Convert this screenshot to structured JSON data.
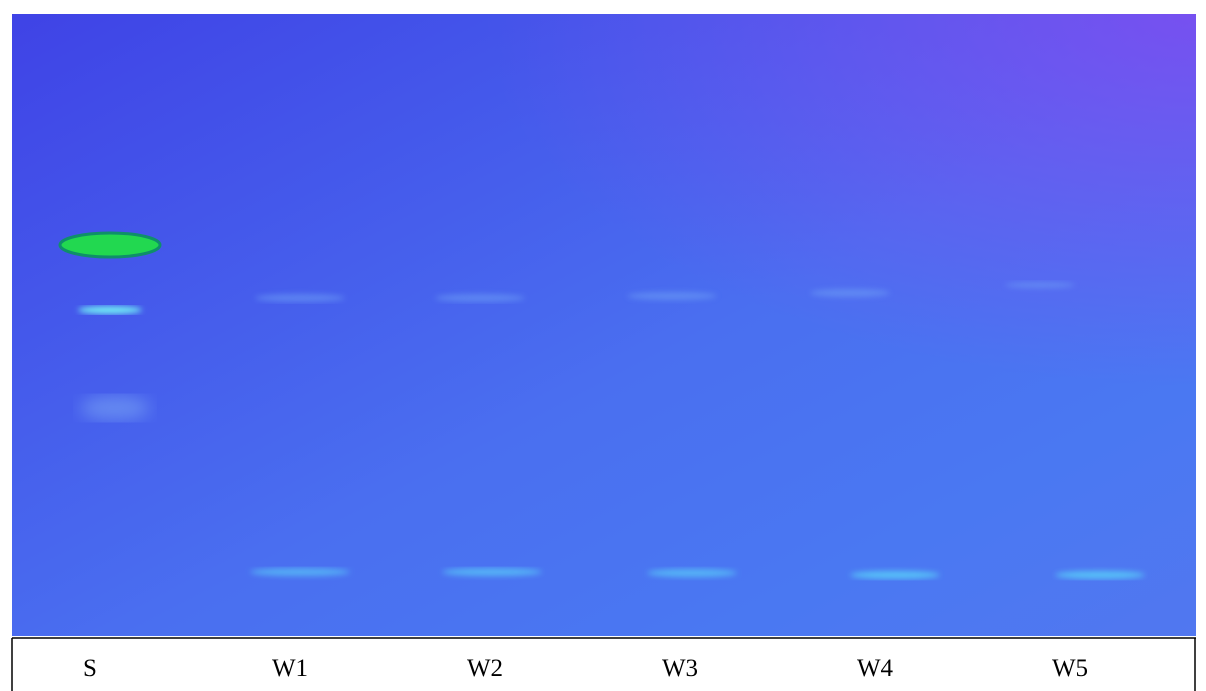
{
  "lanes": [
    "S",
    "W1",
    "W2",
    "W3",
    "W4",
    "W5"
  ]
}
